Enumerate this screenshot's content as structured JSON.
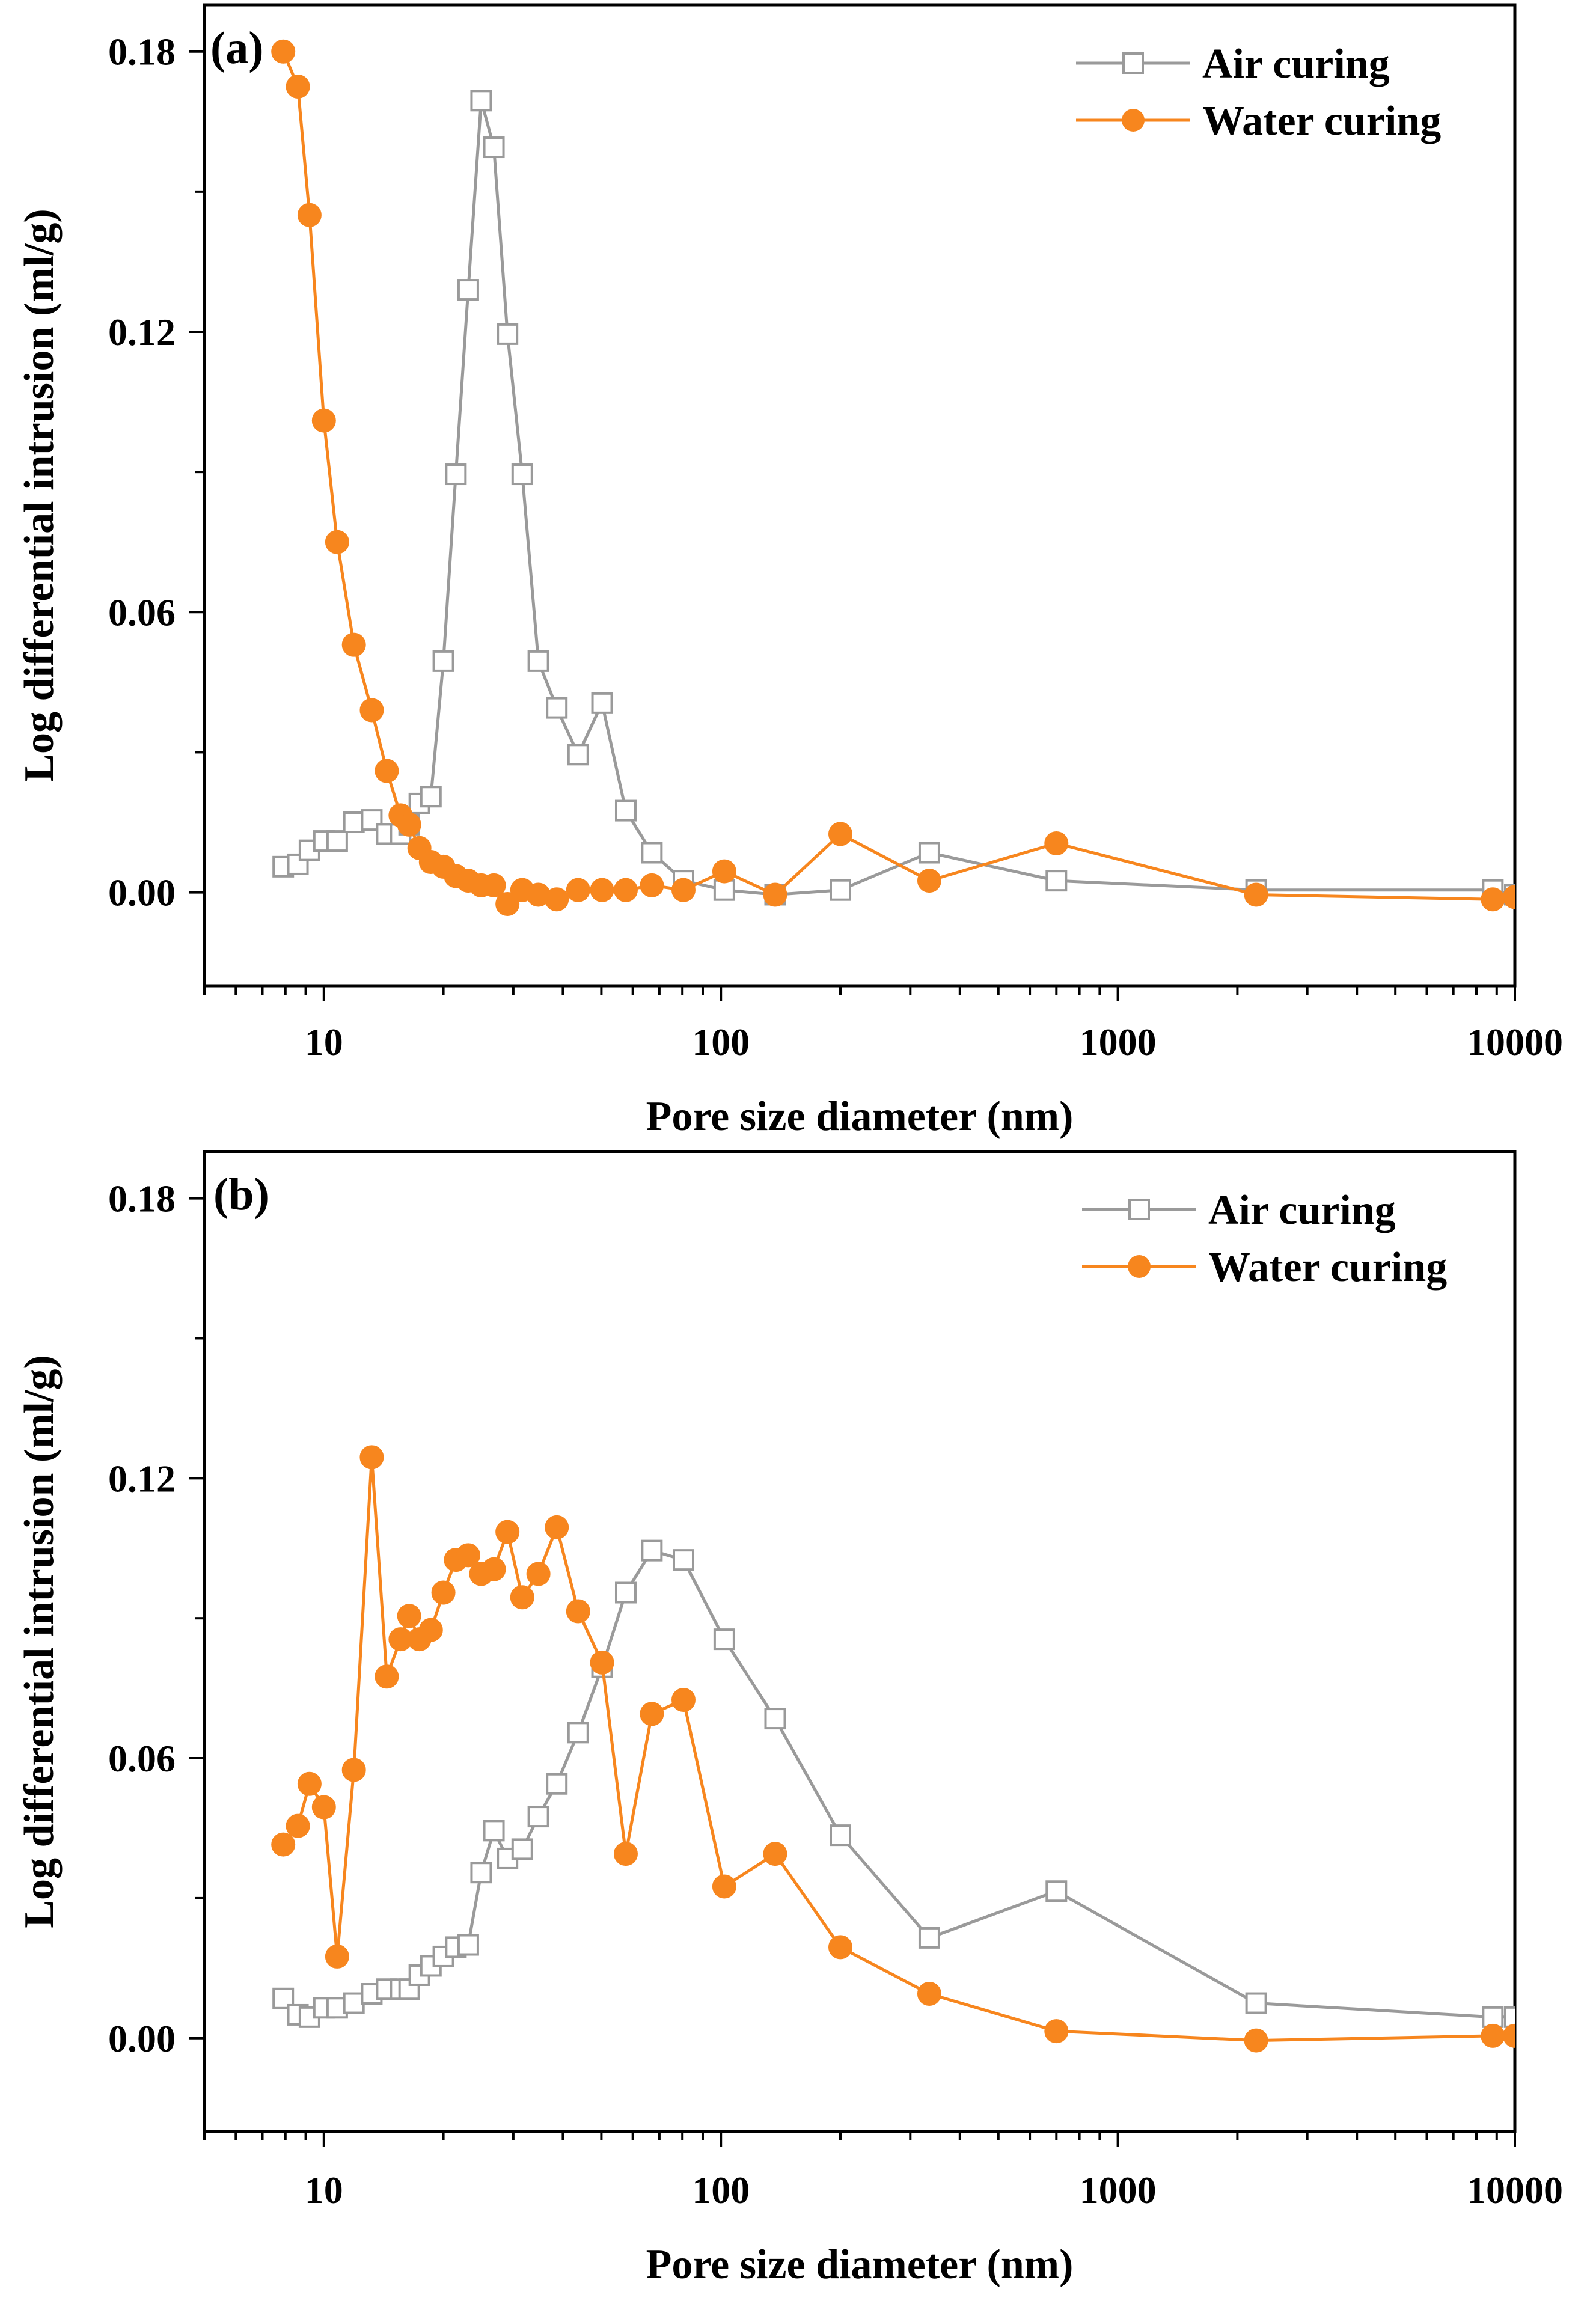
{
  "colors": {
    "air": "#9a9a9a",
    "water": "#f7861e",
    "axis": "#000000"
  },
  "chart_data": [
    {
      "type": "line",
      "panel_label": "(a)",
      "xscale": "log",
      "xlim": [
        5,
        10000
      ],
      "ylim": [
        -0.02,
        0.19
      ],
      "xticks": [
        10,
        100,
        1000,
        10000
      ],
      "xtick_labels": [
        "10",
        "100",
        "1000",
        "10000"
      ],
      "yticks": [
        0.0,
        0.06,
        0.12,
        0.18
      ],
      "ytick_labels": [
        "0.00",
        "0.06",
        "0.12",
        "0.18"
      ],
      "xlabel": "Pore size diameter (nm)",
      "ylabel": "Log differential intrusion (ml/g)",
      "legend_position": "top-right",
      "series": [
        {
          "name": "Air curing",
          "marker": "open-square",
          "x": [
            7.9,
            8.6,
            9.2,
            10.0,
            10.8,
            11.9,
            13.2,
            14.4,
            15.6,
            16.4,
            17.4,
            18.6,
            20.0,
            21.5,
            23.1,
            24.9,
            26.8,
            29.0,
            31.6,
            34.7,
            38.6,
            43.7,
            50.2,
            57.6,
            67.0,
            80.5,
            102,
            137,
            200,
            335,
            700,
            2230,
            8800,
            10000
          ],
          "y": [
            0.0055,
            0.006,
            0.009,
            0.011,
            0.011,
            0.015,
            0.0155,
            0.0125,
            0.0125,
            0.0145,
            0.019,
            0.0205,
            0.0495,
            0.0895,
            0.129,
            0.1695,
            0.1595,
            0.1195,
            0.0895,
            0.0495,
            0.0395,
            0.0295,
            0.0405,
            0.0175,
            0.0085,
            0.0025,
            0.0005,
            -0.0005,
            0.0005,
            0.0085,
            0.0025,
            0.0005,
            0.0005,
            -0.0005
          ]
        },
        {
          "name": "Water curing",
          "marker": "filled-circle",
          "x": [
            7.9,
            8.6,
            9.2,
            10.0,
            10.8,
            11.9,
            13.2,
            14.4,
            15.6,
            16.4,
            17.4,
            18.6,
            20.0,
            21.5,
            23.1,
            24.9,
            26.8,
            29.0,
            31.6,
            34.7,
            38.6,
            43.7,
            50.2,
            57.6,
            67.0,
            80.5,
            102,
            137,
            200,
            335,
            700,
            2230,
            8800,
            10000
          ],
          "y": [
            0.18,
            0.1725,
            0.145,
            0.101,
            0.075,
            0.053,
            0.039,
            0.026,
            0.0165,
            0.0145,
            0.0095,
            0.0065,
            0.0055,
            0.0035,
            0.0025,
            0.0015,
            0.0015,
            -0.0025,
            0.0005,
            -0.0005,
            -0.0015,
            0.0005,
            0.0005,
            0.0005,
            0.0015,
            0.0005,
            0.0045,
            -0.0005,
            0.0125,
            0.0025,
            0.0105,
            -0.0005,
            -0.0015,
            -0.001
          ]
        }
      ]
    },
    {
      "type": "line",
      "panel_label": "(b)",
      "xscale": "log",
      "xlim": [
        5,
        10000
      ],
      "ylim": [
        -0.02,
        0.19
      ],
      "xticks": [
        10,
        100,
        1000,
        10000
      ],
      "xtick_labels": [
        "10",
        "100",
        "1000",
        "10000"
      ],
      "yticks": [
        0.0,
        0.06,
        0.12,
        0.18
      ],
      "ytick_labels": [
        "0.00",
        "0.06",
        "0.12",
        "0.18"
      ],
      "xlabel": "Pore size diameter (nm)",
      "ylabel": "Log differential intrusion (ml/g)",
      "legend_position": "top-right",
      "series": [
        {
          "name": "Air curing",
          "marker": "open-square",
          "x": [
            7.9,
            8.6,
            9.2,
            10.0,
            10.8,
            11.9,
            13.2,
            14.4,
            15.6,
            16.4,
            17.4,
            18.6,
            20.0,
            21.5,
            23.1,
            24.9,
            26.8,
            29.0,
            31.6,
            34.7,
            38.6,
            43.7,
            50.2,
            57.6,
            67.0,
            80.5,
            102,
            137,
            200,
            335,
            700,
            2230,
            8800,
            10000
          ],
          "y": [
            0.0085,
            0.005,
            0.0045,
            0.0065,
            0.0065,
            0.0075,
            0.0095,
            0.0105,
            0.0105,
            0.0105,
            0.0135,
            0.0155,
            0.0175,
            0.0195,
            0.02,
            0.0355,
            0.0445,
            0.0385,
            0.0405,
            0.0475,
            0.0545,
            0.0655,
            0.0795,
            0.0955,
            0.1045,
            0.1025,
            0.0855,
            0.0685,
            0.0435,
            0.0215,
            0.0315,
            0.0075,
            0.0045,
            0.0045
          ]
        },
        {
          "name": "Water curing",
          "marker": "filled-circle",
          "x": [
            7.9,
            8.6,
            9.2,
            10.0,
            10.8,
            11.9,
            13.2,
            14.4,
            15.6,
            16.4,
            17.4,
            18.6,
            20.0,
            21.5,
            23.1,
            24.9,
            26.8,
            29.0,
            31.6,
            34.7,
            38.6,
            43.7,
            50.2,
            57.6,
            67.0,
            80.5,
            102,
            137,
            200,
            335,
            700,
            2230,
            8800,
            10000
          ],
          "y": [
            0.0415,
            0.0455,
            0.0545,
            0.0495,
            0.0175,
            0.0575,
            0.1245,
            0.0775,
            0.0855,
            0.0905,
            0.0855,
            0.0875,
            0.0955,
            0.1025,
            0.1035,
            0.0995,
            0.1005,
            0.1085,
            0.0945,
            0.0995,
            0.1095,
            0.0915,
            0.0805,
            0.0395,
            0.0695,
            0.0725,
            0.0325,
            0.0395,
            0.0195,
            0.0095,
            0.0015,
            -0.0005,
            0.0005,
            0.0005
          ]
        }
      ]
    }
  ]
}
